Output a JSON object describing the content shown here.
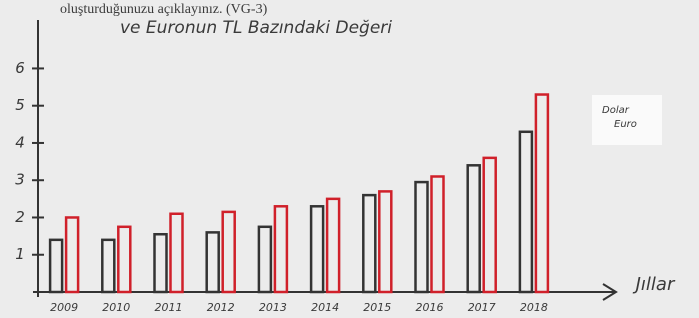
{
  "header": "oluşturduğunuzu açıklayınız. (VG-3)",
  "chart_data": {
    "type": "bar",
    "title": "ve Euronun TL Bazındaki Değeri",
    "x_label": "Jıllar",
    "categories": [
      "2009",
      "2010",
      "2011",
      "2012",
      "2013",
      "2014",
      "2015",
      "2016",
      "2017",
      "2018"
    ],
    "series": [
      {
        "name": "Dolar",
        "color": "#333333",
        "values": [
          1.4,
          1.4,
          1.55,
          1.6,
          1.75,
          2.3,
          2.6,
          2.95,
          3.4,
          4.3
        ]
      },
      {
        "name": "Euro",
        "color": "#d0202a",
        "values": [
          2.0,
          1.75,
          2.1,
          2.15,
          2.3,
          2.5,
          2.7,
          3.1,
          3.6,
          5.3
        ]
      }
    ],
    "ylim": [
      0,
      7.3
    ],
    "yticks": [
      1,
      2,
      3,
      4,
      5,
      6
    ]
  }
}
